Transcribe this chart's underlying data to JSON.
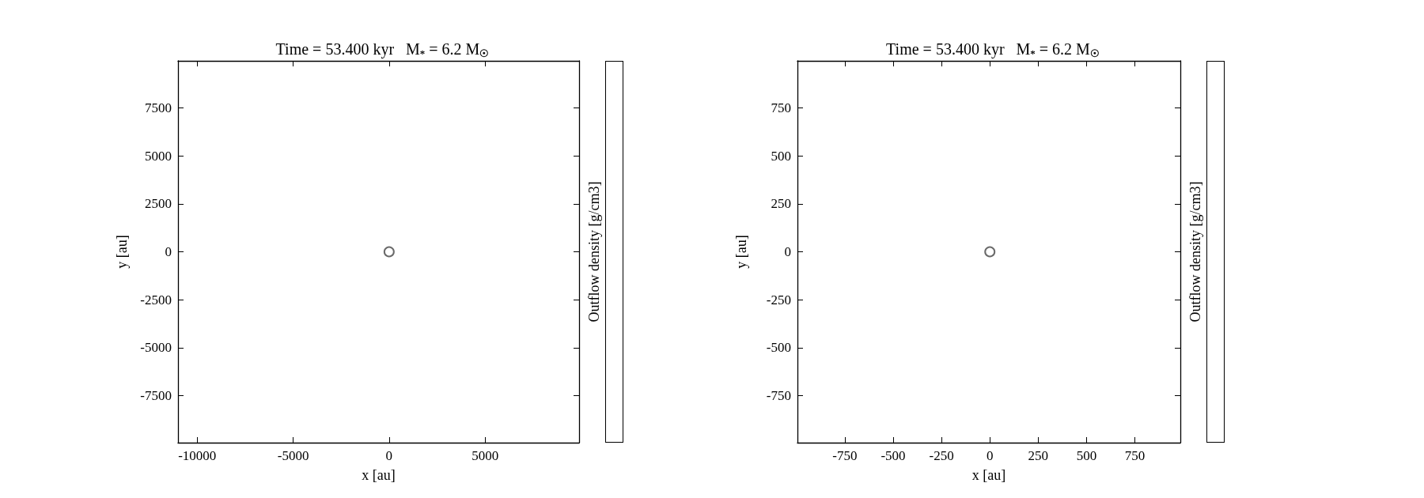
{
  "chart_data": [
    {
      "type": "scatter",
      "title": "Time = 53.400 kyr   M$_{*}$ = 6.2 M$_{☉}$",
      "xlabel": "x [au]",
      "ylabel": "y [au]",
      "clabel": "Outflow density [g/cm3]",
      "x": [
        0
      ],
      "values": [
        0
      ],
      "color": "#444444",
      "marker": "circle",
      "xlim": [
        -11000,
        9900
      ],
      "ylim": [
        -9950,
        9950
      ],
      "xticks": [
        -10000,
        -5000,
        0,
        5000
      ],
      "yticks": [
        -7500,
        -5000,
        -2500,
        0,
        2500,
        5000,
        7500
      ]
    },
    {
      "type": "scatter",
      "title": "Time = 53.400 kyr   M$_{*}$ = 6.2 M$_{☉}$",
      "xlabel": "x [au]",
      "ylabel": "y [au]",
      "clabel": "Outflow density [g/cm3]",
      "x": [
        0
      ],
      "values": [
        0
      ],
      "color": "#444444",
      "marker": "circle",
      "xlim": [
        -995,
        985
      ],
      "ylim": [
        -995,
        995
      ],
      "xticks": [
        -750,
        -500,
        -250,
        0,
        250,
        500,
        750
      ],
      "yticks": [
        -750,
        -500,
        -250,
        0,
        250,
        500,
        750
      ]
    }
  ]
}
